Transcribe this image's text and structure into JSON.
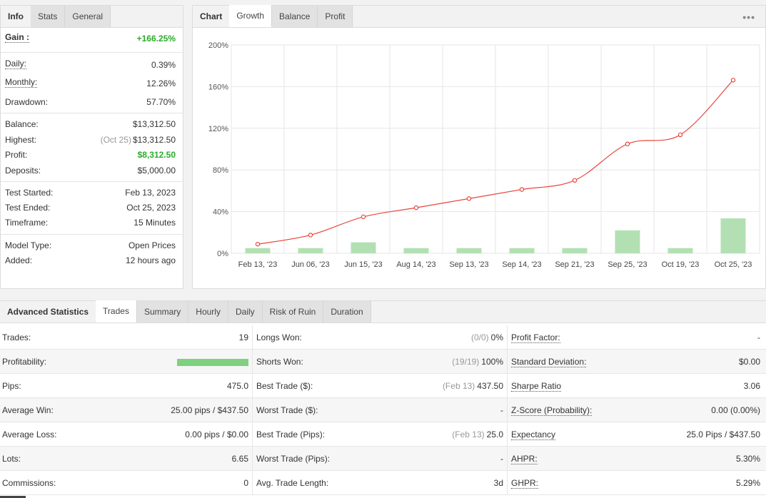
{
  "info": {
    "tabs": [
      "Info",
      "Stats",
      "General"
    ],
    "gain": {
      "label": "Gain :",
      "value": "+166.25%"
    },
    "daily": {
      "label": "Daily:",
      "value": "0.39%"
    },
    "monthly": {
      "label": "Monthly:",
      "value": "12.26%"
    },
    "drawdown": {
      "label": "Drawdown:",
      "value": "57.70%"
    },
    "balance": {
      "label": "Balance:",
      "value": "$13,312.50"
    },
    "highest": {
      "label": "Highest:",
      "date": "(Oct 25)",
      "value": "$13,312.50"
    },
    "profit": {
      "label": "Profit:",
      "value": "$8,312.50"
    },
    "deposits": {
      "label": "Deposits:",
      "value": "$5,000.00"
    },
    "test_started": {
      "label": "Test Started:",
      "value": "Feb 13, 2023"
    },
    "test_ended": {
      "label": "Test Ended:",
      "value": "Oct 25, 2023"
    },
    "timeframe": {
      "label": "Timeframe:",
      "value": "15 Minutes"
    },
    "model_type": {
      "label": "Model Type:",
      "value": "Open Prices"
    },
    "added": {
      "label": "Added:",
      "value": "12 hours ago"
    }
  },
  "chart_tabs": [
    "Chart",
    "Growth",
    "Balance",
    "Profit"
  ],
  "more_icon": "more-dots-icon",
  "colors": {
    "line": "#e8453c",
    "bar": "#b3e0b3",
    "green": "#2cab2c",
    "grid": "#e6e6e6"
  },
  "chart_data": {
    "type": "line",
    "categories": [
      "Feb 13, '23",
      "Jun 06, '23",
      "Jun 15, '23",
      "Aug 14, '23",
      "Sep 13, '23",
      "Sep 14, '23",
      "Sep 21, '23",
      "Sep 25, '23",
      "Oct 19, '23",
      "Oct 25, '23"
    ],
    "series": [
      {
        "type": "line",
        "values": [
          8.75,
          17.5,
          35,
          43.75,
          52.5,
          61.25,
          70,
          105,
          113.75,
          166.25
        ]
      },
      {
        "type": "bar",
        "values": [
          5,
          5,
          10.5,
          5,
          5,
          5,
          5,
          22,
          5,
          33.5
        ]
      }
    ],
    "y_ticks": [
      "0%",
      "40%",
      "80%",
      "120%",
      "160%",
      "200%"
    ],
    "ylim": [
      0,
      200
    ],
    "grid": true
  },
  "advanced": {
    "tabs": [
      "Advanced Statistics",
      "Trades",
      "Summary",
      "Hourly",
      "Daily",
      "Risk of Ruin",
      "Duration"
    ],
    "rows": [
      [
        {
          "k": "Trades:",
          "v": "19"
        },
        {
          "k": "Longs Won:",
          "m": "(0/0)",
          "v": "0%"
        },
        {
          "k": "Profit Factor:",
          "v": "-",
          "u": true
        }
      ],
      [
        {
          "k": "Profitability:",
          "bar": 1.0
        },
        {
          "k": "Shorts Won:",
          "m": "(19/19)",
          "v": "100%"
        },
        {
          "k": "Standard Deviation:",
          "v": "$0.00",
          "u": true
        }
      ],
      [
        {
          "k": "Pips:",
          "v": "475.0"
        },
        {
          "k": "Best Trade ($):",
          "m": "(Feb 13)",
          "v": "437.50"
        },
        {
          "k": "Sharpe Ratio",
          "v": "3.06",
          "u": true
        }
      ],
      [
        {
          "k": "Average Win:",
          "v": "25.00 pips / $437.50"
        },
        {
          "k": "Worst Trade ($):",
          "v": "-"
        },
        {
          "k": "Z-Score (Probability):",
          "v": "0.00 (0.00%)",
          "u": true
        }
      ],
      [
        {
          "k": "Average Loss:",
          "v": "0.00 pips / $0.00"
        },
        {
          "k": "Best Trade (Pips):",
          "m": "(Feb 13)",
          "v": "25.0"
        },
        {
          "k": "Expectancy",
          "v": "25.0 Pips / $437.50",
          "u": true
        }
      ],
      [
        {
          "k": "Lots:",
          "v": "6.65"
        },
        {
          "k": "Worst Trade (Pips):",
          "v": "-"
        },
        {
          "k": "AHPR:",
          "v": "5.30%",
          "u": true
        }
      ],
      [
        {
          "k": "Commissions:",
          "v": "0"
        },
        {
          "k": "Avg. Trade Length:",
          "v": "3d"
        },
        {
          "k": "GHPR:",
          "v": "5.29%",
          "u": true
        }
      ]
    ]
  }
}
